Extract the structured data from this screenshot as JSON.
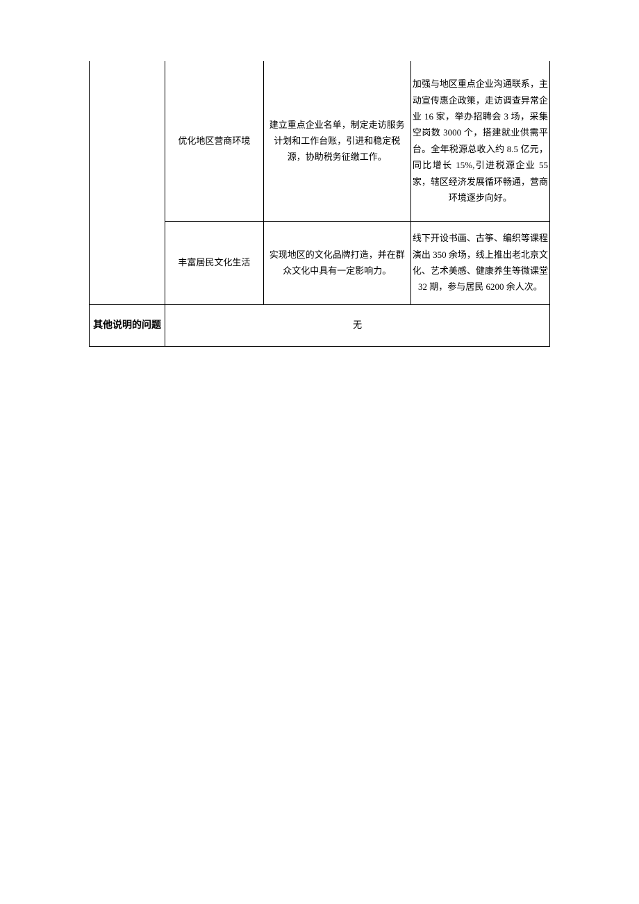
{
  "table": {
    "rows": [
      {
        "col1": "",
        "col2": "优化地区营商环境",
        "col3": "建立重点企业名单，制定走访服务计划和工作台账，引进和稳定税源，协助税务征缴工作。",
        "col4": "加强与地区重点企业沟通联系，主动宣传惠企政策，走访调查异常企业 16 家，举办招聘会 3 场，采集空岗数 3000 个，搭建就业供需平台。全年税源总收入约 8.5 亿元，同比增长 15%,引进税源企业 55 家，辖区经济发展循环畅通，营商环境逐步向好。"
      },
      {
        "col2": "丰富居民文化生活",
        "col3": "实现地区的文化品牌打造，并在群众文化中具有一定影响力。",
        "col4": "线下开设书画、古筝、编织等课程演出 350 余场，线上推出老北京文化、艺术美感、健康养生等微课堂 32 期，参与居民 6200 余人次。"
      }
    ],
    "footer": {
      "label": "其他说明的问题",
      "value": "无"
    }
  },
  "style": {
    "border_color": "#000000",
    "background": "#ffffff",
    "font_main": "SimSun",
    "font_bold": "SimHei",
    "font_size_cell": 13,
    "font_size_label": 14
  }
}
